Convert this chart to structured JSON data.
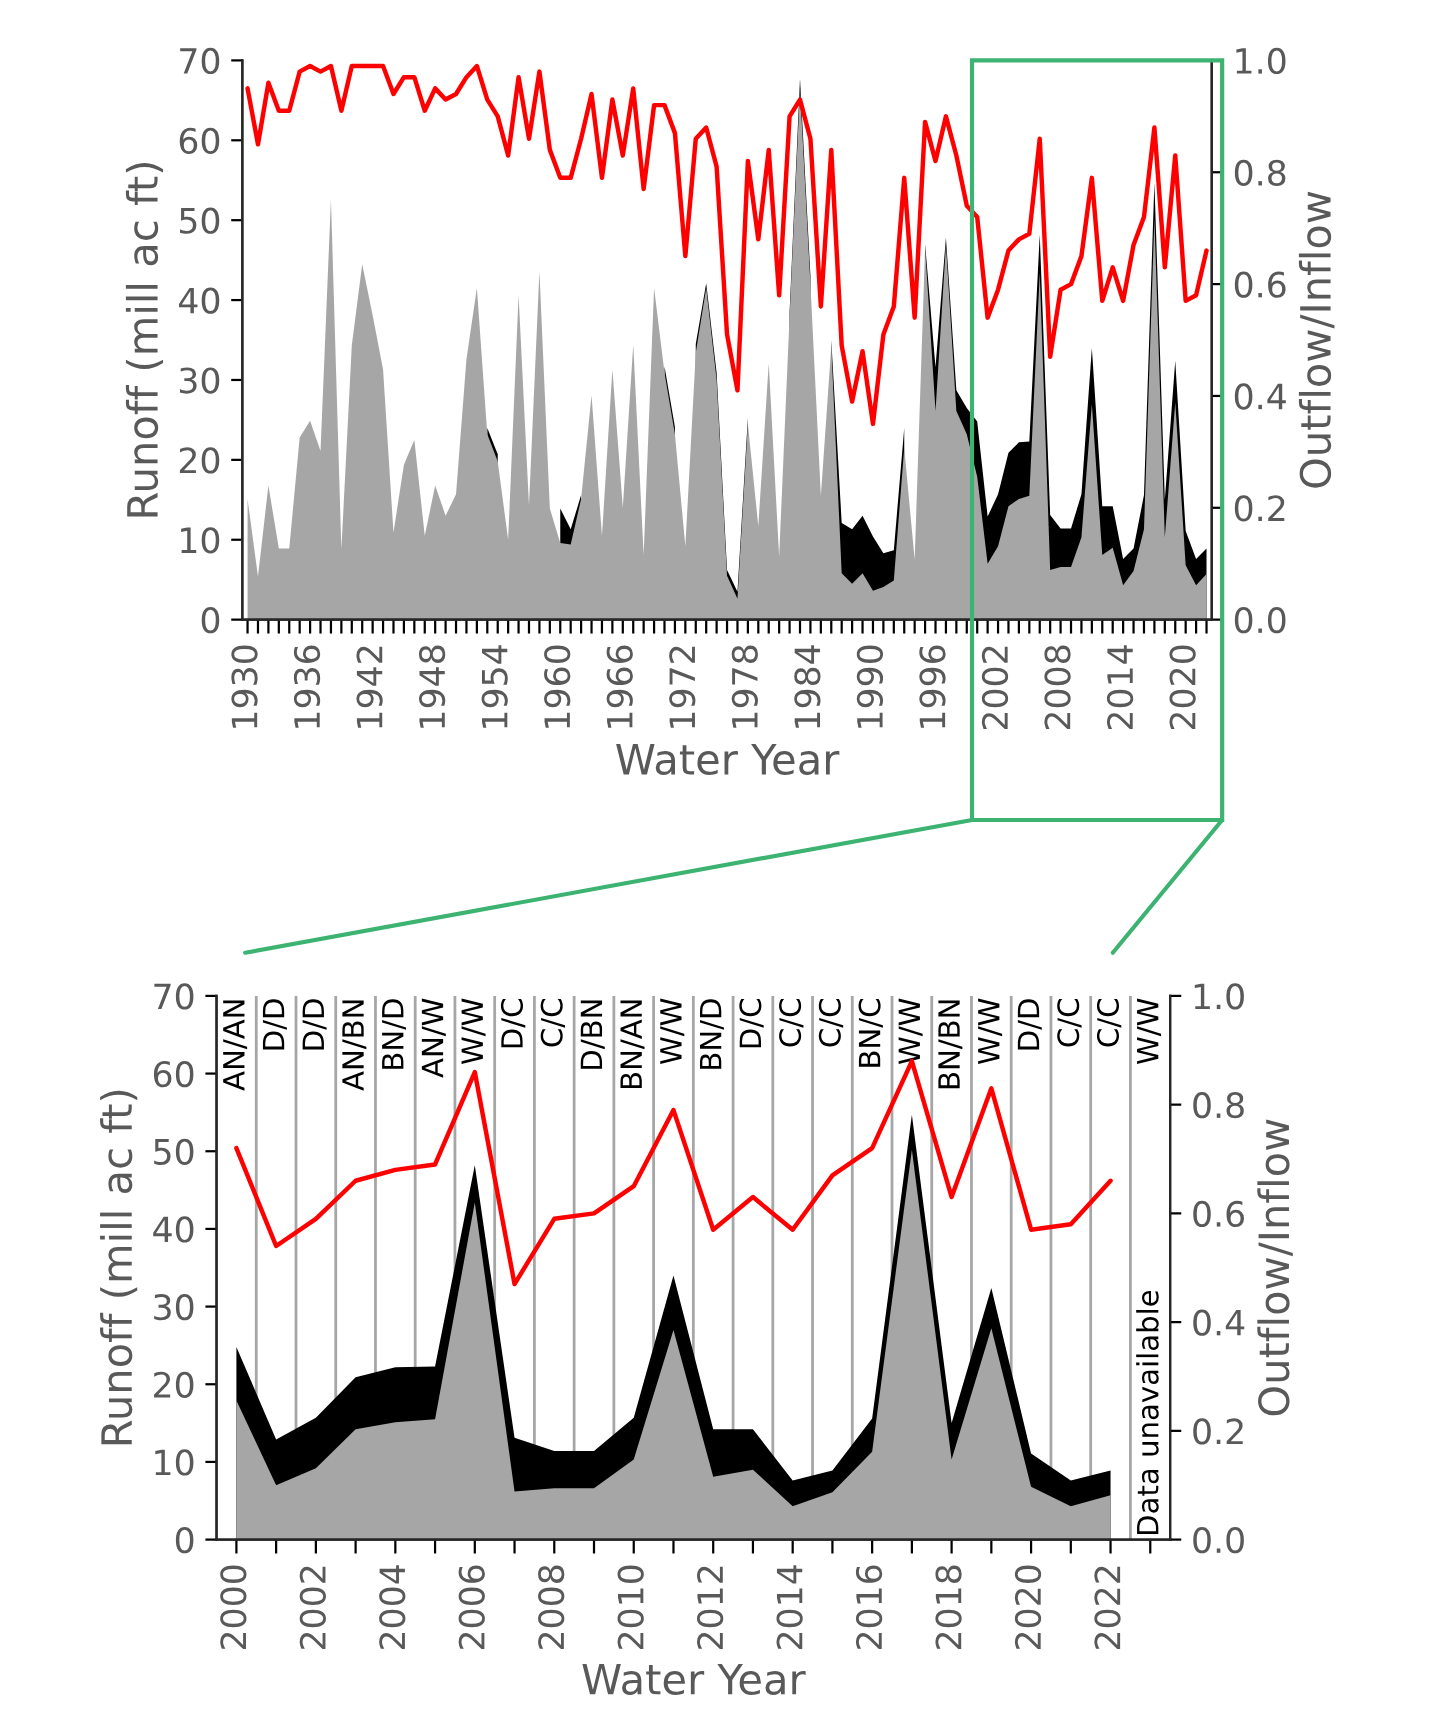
{
  "chart_data": [
    {
      "type": "area",
      "xlabel": "Water Year",
      "ylabel": "Runoff (mill ac ft)",
      "y2label": "Outflow/Inflow",
      "x": [
        1930,
        1931,
        1932,
        1933,
        1934,
        1935,
        1936,
        1937,
        1938,
        1939,
        1940,
        1941,
        1942,
        1943,
        1944,
        1945,
        1946,
        1947,
        1948,
        1949,
        1950,
        1951,
        1952,
        1953,
        1954,
        1955,
        1956,
        1957,
        1958,
        1959,
        1960,
        1961,
        1962,
        1963,
        1964,
        1965,
        1966,
        1967,
        1968,
        1969,
        1970,
        1971,
        1972,
        1973,
        1974,
        1975,
        1976,
        1977,
        1978,
        1979,
        1980,
        1981,
        1982,
        1983,
        1984,
        1985,
        1986,
        1987,
        1988,
        1989,
        1990,
        1991,
        1992,
        1993,
        1994,
        1995,
        1996,
        1997,
        1998,
        1999,
        2000,
        2001,
        2002,
        2003,
        2004,
        2005,
        2006,
        2007,
        2008,
        2009,
        2010,
        2011,
        2012,
        2013,
        2014,
        2015,
        2016,
        2017,
        2018,
        2019,
        2020,
        2021,
        2022
      ],
      "series": [
        {
          "color": "#000000",
          "values": [
            null,
            null,
            null,
            null,
            null,
            null,
            null,
            null,
            null,
            null,
            null,
            null,
            null,
            null,
            null,
            null,
            null,
            null,
            null,
            null,
            null,
            null,
            null,
            24.0,
            20.7,
            null,
            null,
            null,
            null,
            null,
            13.9,
            11.3,
            15.6,
            null,
            null,
            null,
            null,
            null,
            null,
            null,
            31.7,
            24.1,
            null,
            34.5,
            42.1,
            30.9,
            6.2,
            3.5,
            25.3,
            null,
            null,
            null,
            38.5,
            67.7,
            43.0,
            null,
            35.0,
            12.1,
            11.3,
            13.0,
            10.4,
            8.3,
            8.7,
            24.0,
            null,
            47.0,
            31.6,
            47.8,
            28.7,
            26.5,
            24.8,
            12.9,
            15.7,
            20.9,
            22.2,
            22.3,
            48.2,
            13.1,
            11.4,
            11.4,
            15.7,
            34.0,
            14.2,
            14.2,
            7.6,
            8.9,
            15.6,
            54.7,
            15.0,
            32.4,
            11.1,
            7.6,
            8.9
          ]
        },
        {
          "color": "#a6a6a6",
          "values": [
            15.1,
            5.4,
            16.8,
            8.9,
            8.9,
            22.8,
            24.9,
            21.1,
            52.6,
            8.8,
            34.3,
            44.5,
            38.1,
            31.3,
            10.9,
            19.4,
            22.5,
            10.5,
            16.8,
            13.0,
            15.7,
            32.6,
            41.5,
            23.2,
            19.8,
            10.0,
            40.6,
            14.3,
            43.6,
            13.9,
            9.6,
            9.4,
            15.1,
            28.1,
            10.5,
            31.3,
            14.0,
            34.4,
            8.1,
            41.5,
            30.9,
            23.2,
            9.2,
            33.4,
            41.5,
            30.0,
            5.5,
            2.6,
            24.5,
            11.7,
            32.1,
            7.9,
            38.0,
            66.4,
            42.0,
            15.5,
            34.2,
            5.8,
            4.5,
            5.8,
            3.6,
            4.1,
            4.9,
            21.5,
            7.5,
            46.5,
            26.1,
            46.9,
            26.1,
            23.2,
            17.9,
            7.0,
            9.2,
            14.2,
            15.1,
            15.5,
            43.4,
            6.2,
            6.6,
            6.6,
            10.3,
            27.0,
            8.1,
            9.0,
            4.3,
            6.1,
            11.3,
            50.2,
            10.3,
            27.2,
            6.8,
            4.3,
            5.7
          ]
        },
        {
          "type": "line",
          "axis": "y2",
          "color": "#ff0000",
          "values": [
            0.95,
            0.85,
            0.96,
            0.91,
            0.91,
            0.98,
            0.99,
            0.98,
            0.99,
            0.91,
            0.99,
            0.99,
            0.99,
            0.99,
            0.94,
            0.97,
            0.97,
            0.91,
            0.95,
            0.93,
            0.94,
            0.97,
            0.99,
            0.93,
            0.9,
            0.83,
            0.97,
            0.86,
            0.98,
            0.84,
            0.79,
            0.79,
            0.86,
            0.94,
            0.79,
            0.93,
            0.83,
            0.95,
            0.77,
            0.92,
            0.92,
            0.87,
            0.65,
            0.86,
            0.88,
            0.81,
            0.51,
            0.41,
            0.82,
            0.68,
            0.84,
            0.58,
            0.9,
            0.93,
            0.86,
            0.56,
            0.84,
            0.49,
            0.39,
            0.48,
            0.35,
            0.51,
            0.56,
            0.79,
            0.54,
            0.89,
            0.82,
            0.9,
            0.83,
            0.74,
            0.72,
            0.54,
            0.59,
            0.66,
            0.68,
            0.69,
            0.86,
            0.47,
            0.59,
            0.6,
            0.65,
            0.79,
            0.57,
            0.63,
            0.57,
            0.67,
            0.72,
            0.88,
            0.63,
            0.83,
            0.57,
            0.58,
            0.66
          ]
        }
      ],
      "xlim": [
        1929.5,
        2022.5
      ],
      "xticks": [
        1930,
        {
          "value": 1931,
          "label": null
        },
        {
          "value": 1932,
          "label": null
        },
        {
          "value": 1933,
          "label": null
        },
        {
          "value": 1934,
          "label": null
        },
        {
          "value": 1935,
          "label": null
        },
        1936,
        {
          "value": 1937,
          "label": null
        },
        {
          "value": 1938,
          "label": null
        },
        {
          "value": 1939,
          "label": null
        },
        {
          "value": 1940,
          "label": null
        },
        {
          "value": 1941,
          "label": null
        },
        1942,
        {
          "value": 1943,
          "label": null
        },
        {
          "value": 1944,
          "label": null
        },
        {
          "value": 1945,
          "label": null
        },
        {
          "value": 1946,
          "label": null
        },
        {
          "value": 1947,
          "label": null
        },
        1948,
        {
          "value": 1949,
          "label": null
        },
        {
          "value": 1950,
          "label": null
        },
        {
          "value": 1951,
          "label": null
        },
        {
          "value": 1952,
          "label": null
        },
        {
          "value": 1953,
          "label": null
        },
        1954,
        {
          "value": 1955,
          "label": null
        },
        {
          "value": 1956,
          "label": null
        },
        {
          "value": 1957,
          "label": null
        },
        {
          "value": 1958,
          "label": null
        },
        {
          "value": 1959,
          "label": null
        },
        1960,
        {
          "value": 1961,
          "label": null
        },
        {
          "value": 1962,
          "label": null
        },
        {
          "value": 1963,
          "label": null
        },
        {
          "value": 1964,
          "label": null
        },
        {
          "value": 1965,
          "label": null
        },
        1966,
        {
          "value": 1967,
          "label": null
        },
        {
          "value": 1968,
          "label": null
        },
        {
          "value": 1969,
          "label": null
        },
        {
          "value": 1970,
          "label": null
        },
        {
          "value": 1971,
          "label": null
        },
        1972,
        {
          "value": 1973,
          "label": null
        },
        {
          "value": 1974,
          "label": null
        },
        {
          "value": 1975,
          "label": null
        },
        {
          "value": 1976,
          "label": null
        },
        {
          "value": 1977,
          "label": null
        },
        1978,
        {
          "value": 1979,
          "label": null
        },
        {
          "value": 1980,
          "label": null
        },
        {
          "value": 1981,
          "label": null
        },
        {
          "value": 1982,
          "label": null
        },
        {
          "value": 1983,
          "label": null
        },
        1984,
        {
          "value": 1985,
          "label": null
        },
        {
          "value": 1986,
          "label": null
        },
        {
          "value": 1987,
          "label": null
        },
        {
          "value": 1988,
          "label": null
        },
        {
          "value": 1989,
          "label": null
        },
        1990,
        {
          "value": 1991,
          "label": null
        },
        {
          "value": 1992,
          "label": null
        },
        {
          "value": 1993,
          "label": null
        },
        {
          "value": 1994,
          "label": null
        },
        {
          "value": 1995,
          "label": null
        },
        1996,
        {
          "value": 1997,
          "label": null
        },
        {
          "value": 1998,
          "label": null
        },
        {
          "value": 1999,
          "label": null
        },
        {
          "value": 2000,
          "label": null
        },
        {
          "value": 2001,
          "label": null
        },
        2002,
        {
          "value": 2003,
          "label": null
        },
        {
          "value": 2004,
          "label": null
        },
        {
          "value": 2005,
          "label": null
        },
        {
          "value": 2006,
          "label": null
        },
        {
          "value": 2007,
          "label": null
        },
        2008,
        {
          "value": 2009,
          "label": null
        },
        {
          "value": 2010,
          "label": null
        },
        {
          "value": 2011,
          "label": null
        },
        {
          "value": 2012,
          "label": null
        },
        {
          "value": 2013,
          "label": null
        },
        2014,
        {
          "value": 2015,
          "label": null
        },
        {
          "value": 2016,
          "label": null
        },
        {
          "value": 2017,
          "label": null
        },
        {
          "value": 2018,
          "label": null
        },
        {
          "value": 2019,
          "label": null
        },
        2020,
        {
          "value": 2021,
          "label": null
        },
        {
          "value": 2022,
          "label": null
        }
      ],
      "ylim": [
        0,
        70
      ],
      "yticks": [
        0,
        10,
        20,
        30,
        40,
        50,
        60,
        70
      ],
      "y2lim": [
        0,
        1
      ],
      "y2ticks": [
        {
          "value": 0,
          "label": "0.0"
        },
        {
          "value": 0.2,
          "label": "0.2"
        },
        {
          "value": 0.4,
          "label": "0.4"
        },
        {
          "value": 0.6,
          "label": "0.6"
        },
        {
          "value": 0.8,
          "label": "0.8"
        },
        {
          "value": 1,
          "label": "1.0"
        }
      ],
      "grid": false,
      "legend": false
    },
    {
      "type": "area",
      "xlabel": "Water Year",
      "ylabel": "Runoff (mill ac ft)",
      "y2label": "Outflow/Inflow",
      "x": [
        2000,
        2001,
        2002,
        2003,
        2004,
        2005,
        2006,
        2007,
        2008,
        2009,
        2010,
        2011,
        2012,
        2013,
        2014,
        2015,
        2016,
        2017,
        2018,
        2019,
        2020,
        2021,
        2022
      ],
      "series": [
        {
          "color": "#000000",
          "values": [
            24.8,
            12.9,
            15.7,
            20.9,
            22.2,
            22.3,
            48.2,
            13.1,
            11.4,
            11.4,
            15.7,
            34.0,
            14.2,
            14.2,
            7.6,
            8.9,
            15.6,
            54.7,
            15.0,
            32.4,
            11.1,
            7.6,
            8.9
          ]
        },
        {
          "color": "#a6a6a6",
          "values": [
            17.9,
            7.0,
            9.2,
            14.2,
            15.1,
            15.5,
            43.4,
            6.2,
            6.6,
            6.6,
            10.3,
            27.0,
            8.1,
            9.0,
            4.3,
            6.1,
            11.3,
            50.2,
            10.3,
            27.2,
            6.8,
            4.3,
            5.7
          ]
        },
        {
          "type": "line",
          "axis": "y2",
          "color": "#ff0000",
          "values": [
            0.72,
            0.54,
            0.59,
            0.66,
            0.68,
            0.69,
            0.86,
            0.47,
            0.59,
            0.6,
            0.65,
            0.79,
            0.57,
            0.63,
            0.57,
            0.67,
            0.72,
            0.88,
            0.63,
            0.83,
            0.57,
            0.58,
            0.66
          ]
        }
      ],
      "xlim": [
        1999.5,
        2023.5
      ],
      "xticks": [
        2000,
        {
          "value": 2001,
          "label": null
        },
        2002,
        {
          "value": 2003,
          "label": null
        },
        2004,
        {
          "value": 2005,
          "label": null
        },
        2006,
        {
          "value": 2007,
          "label": null
        },
        2008,
        {
          "value": 2009,
          "label": null
        },
        2010,
        {
          "value": 2011,
          "label": null
        },
        2012,
        {
          "value": 2013,
          "label": null
        },
        2014,
        {
          "value": 2015,
          "label": null
        },
        2016,
        {
          "value": 2017,
          "label": null
        },
        2018,
        {
          "value": 2019,
          "label": null
        },
        2020,
        {
          "value": 2021,
          "label": null
        },
        2022,
        {
          "value": 2023,
          "label": null
        }
      ],
      "ylim": [
        0,
        70
      ],
      "yticks": [
        0,
        10,
        20,
        30,
        40,
        50,
        60,
        70
      ],
      "y2lim": [
        0,
        1
      ],
      "y2ticks": [
        {
          "value": 0,
          "label": "0.0"
        },
        {
          "value": 0.2,
          "label": "0.2"
        },
        {
          "value": 0.4,
          "label": "0.4"
        },
        {
          "value": 0.6,
          "label": "0.6"
        },
        {
          "value": 0.8,
          "label": "0.8"
        },
        {
          "value": 1,
          "label": "1.0"
        }
      ],
      "ref_lines": [
        {
          "axis": "x",
          "value": 2000.5,
          "color": "#a6a6a6"
        },
        {
          "axis": "x",
          "value": 2001.5,
          "color": "#a6a6a6"
        },
        {
          "axis": "x",
          "value": 2002.5,
          "color": "#a6a6a6"
        },
        {
          "axis": "x",
          "value": 2003.5,
          "color": "#a6a6a6"
        },
        {
          "axis": "x",
          "value": 2004.5,
          "color": "#a6a6a6"
        },
        {
          "axis": "x",
          "value": 2005.5,
          "color": "#a6a6a6"
        },
        {
          "axis": "x",
          "value": 2006.5,
          "color": "#a6a6a6"
        },
        {
          "axis": "x",
          "value": 2007.5,
          "color": "#a6a6a6"
        },
        {
          "axis": "x",
          "value": 2008.5,
          "color": "#a6a6a6"
        },
        {
          "axis": "x",
          "value": 2009.5,
          "color": "#a6a6a6"
        },
        {
          "axis": "x",
          "value": 2010.5,
          "color": "#a6a6a6"
        },
        {
          "axis": "x",
          "value": 2011.5,
          "color": "#a6a6a6"
        },
        {
          "axis": "x",
          "value": 2012.5,
          "color": "#a6a6a6"
        },
        {
          "axis": "x",
          "value": 2013.5,
          "color": "#a6a6a6"
        },
        {
          "axis": "x",
          "value": 2014.5,
          "color": "#a6a6a6"
        },
        {
          "axis": "x",
          "value": 2015.5,
          "color": "#a6a6a6"
        },
        {
          "axis": "x",
          "value": 2016.5,
          "color": "#a6a6a6"
        },
        {
          "axis": "x",
          "value": 2017.5,
          "color": "#a6a6a6"
        },
        {
          "axis": "x",
          "value": 2018.5,
          "color": "#a6a6a6"
        },
        {
          "axis": "x",
          "value": 2019.5,
          "color": "#a6a6a6"
        },
        {
          "axis": "x",
          "value": 2020.5,
          "color": "#a6a6a6"
        },
        {
          "axis": "x",
          "value": 2021.5,
          "color": "#a6a6a6"
        },
        {
          "axis": "x",
          "value": 2022.5,
          "color": "#a6a6a6"
        }
      ],
      "annotations": [
        "AN/AN",
        "D/D",
        "D/D",
        "AN/BN",
        "BN/D",
        "AN/W",
        "W/W",
        "D/C",
        "C/C",
        "D/BN",
        "BN/AN",
        "W/W",
        "BN/D",
        "D/C",
        "C/C",
        "C/C",
        "BN/C",
        "W/W",
        "BN/BN",
        "W/W",
        "D/D",
        "C/C",
        "C/C",
        "W/W",
        "Data unavailable"
      ],
      "grid": false,
      "legend": false
    }
  ]
}
